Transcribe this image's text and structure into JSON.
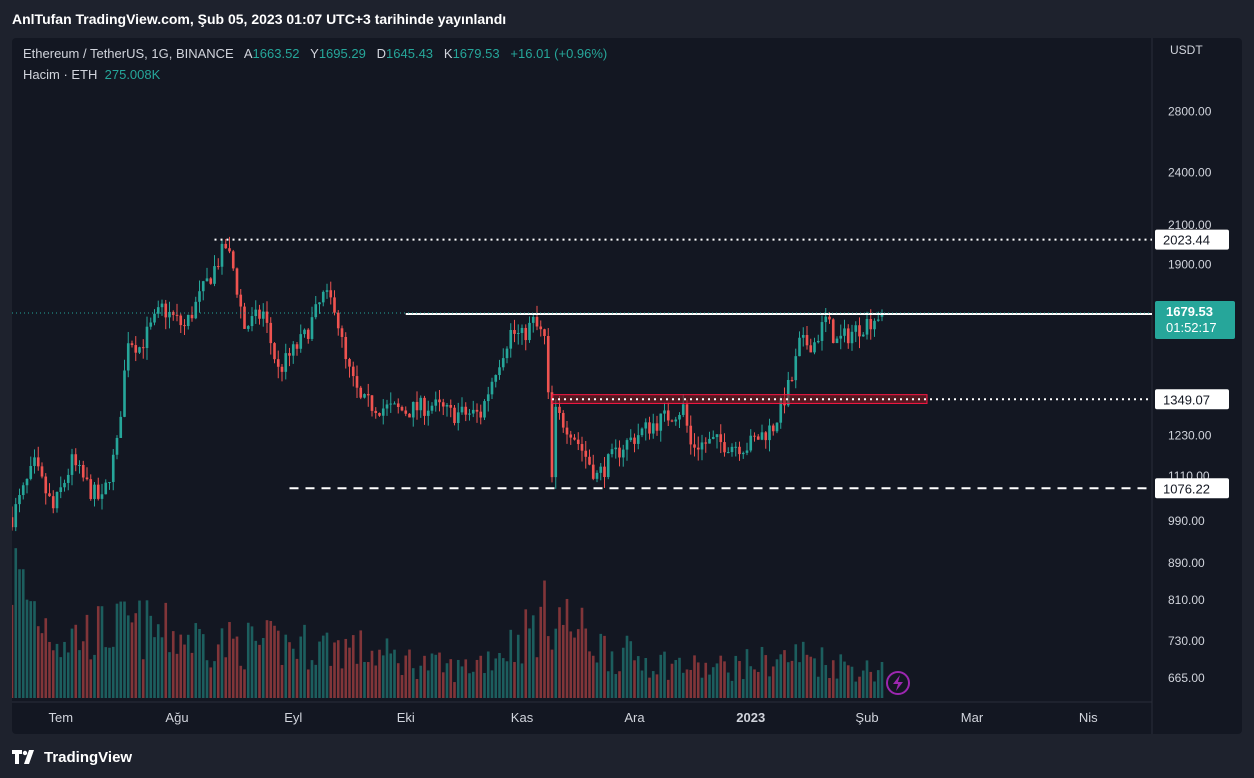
{
  "header": {
    "publish_line": "AnlTufan TradingView.com, Şub 05, 2023 01:07 UTC+3 tarihinde yayınlandı"
  },
  "legend": {
    "symbol": "Ethereum / TetherUS, 1G, BINANCE",
    "o_label": "A",
    "o_value": "1663.52",
    "h_label": "Y",
    "h_value": "1695.29",
    "l_label": "D",
    "l_value": "1645.43",
    "c_label": "K",
    "c_value": "1679.53",
    "change": "+16.01 (+0.96%)",
    "volume_label": "Hacim · ETH",
    "volume_value": "275.008K"
  },
  "footer": {
    "brand": "TradingView"
  },
  "colors": {
    "up": "#26a69a",
    "down": "#ef5350",
    "background": "#131722",
    "frame": "#1e222d",
    "zone": "#ff1744"
  },
  "chart_data": {
    "type": "candlestick",
    "currency": "USDT",
    "y_scale": "log",
    "ylim": [
      640,
      3050
    ],
    "y_ticks": [
      "2800.00",
      "2400.00",
      "2100.00",
      "1900.00",
      "1230.00",
      "1110.00",
      "990.00",
      "890.00",
      "810.00",
      "730.00",
      "665.00"
    ],
    "x_ticks": [
      {
        "label": "Tem",
        "date": "2022-07-01"
      },
      {
        "label": "Ağu",
        "date": "2022-08-01"
      },
      {
        "label": "Eyl",
        "date": "2022-09-01"
      },
      {
        "label": "Eki",
        "date": "2022-10-01"
      },
      {
        "label": "Kas",
        "date": "2022-11-01"
      },
      {
        "label": "Ara",
        "date": "2022-12-01"
      },
      {
        "label": "2023",
        "date": "2023-01-01"
      },
      {
        "label": "Şub",
        "date": "2023-02-01"
      },
      {
        "label": "Mar",
        "date": "2023-03-01"
      },
      {
        "label": "Nis",
        "date": "2023-04-01"
      }
    ],
    "start_date": "2022-06-18",
    "close_path": [
      {
        "date": "2022-06-18",
        "value": 1000
      },
      {
        "date": "2022-06-24",
        "value": 1140
      },
      {
        "date": "2022-06-29",
        "value": 1020
      },
      {
        "date": "2022-07-04",
        "value": 1150
      },
      {
        "date": "2022-07-09",
        "value": 1070
      },
      {
        "date": "2022-07-12",
        "value": 1040
      },
      {
        "date": "2022-07-16",
        "value": 1200
      },
      {
        "date": "2022-07-19",
        "value": 1580
      },
      {
        "date": "2022-07-22",
        "value": 1540
      },
      {
        "date": "2022-07-28",
        "value": 1700
      },
      {
        "date": "2022-08-03",
        "value": 1620
      },
      {
        "date": "2022-08-08",
        "value": 1780
      },
      {
        "date": "2022-08-14",
        "value": 1990
      },
      {
        "date": "2022-08-16",
        "value": 1880
      },
      {
        "date": "2022-08-19",
        "value": 1620
      },
      {
        "date": "2022-08-24",
        "value": 1680
      },
      {
        "date": "2022-08-28",
        "value": 1450
      },
      {
        "date": "2022-09-04",
        "value": 1580
      },
      {
        "date": "2022-09-09",
        "value": 1750
      },
      {
        "date": "2022-09-12",
        "value": 1720
      },
      {
        "date": "2022-09-15",
        "value": 1480
      },
      {
        "date": "2022-09-19",
        "value": 1340
      },
      {
        "date": "2022-09-25",
        "value": 1320
      },
      {
        "date": "2022-10-01",
        "value": 1310
      },
      {
        "date": "2022-10-08",
        "value": 1330
      },
      {
        "date": "2022-10-13",
        "value": 1300
      },
      {
        "date": "2022-10-21",
        "value": 1300
      },
      {
        "date": "2022-10-25",
        "value": 1460
      },
      {
        "date": "2022-10-29",
        "value": 1600
      },
      {
        "date": "2022-11-01",
        "value": 1580
      },
      {
        "date": "2022-11-04",
        "value": 1640
      },
      {
        "date": "2022-11-07",
        "value": 1570
      },
      {
        "date": "2022-11-08",
        "value": 1350
      },
      {
        "date": "2022-11-09",
        "value": 1100
      },
      {
        "date": "2022-11-10",
        "value": 1300
      },
      {
        "date": "2022-11-14",
        "value": 1250
      },
      {
        "date": "2022-11-21",
        "value": 1110
      },
      {
        "date": "2022-11-28",
        "value": 1200
      },
      {
        "date": "2022-12-05",
        "value": 1260
      },
      {
        "date": "2022-12-14",
        "value": 1320
      },
      {
        "date": "2022-12-16",
        "value": 1200
      },
      {
        "date": "2022-12-22",
        "value": 1210
      },
      {
        "date": "2022-12-31",
        "value": 1198
      },
      {
        "date": "2023-01-07",
        "value": 1260
      },
      {
        "date": "2023-01-12",
        "value": 1420
      },
      {
        "date": "2023-01-14",
        "value": 1550
      },
      {
        "date": "2023-01-18",
        "value": 1560
      },
      {
        "date": "2023-01-21",
        "value": 1650
      },
      {
        "date": "2023-01-24",
        "value": 1560
      },
      {
        "date": "2023-01-28",
        "value": 1600
      },
      {
        "date": "2023-02-01",
        "value": 1640
      },
      {
        "date": "2023-02-05",
        "value": 1679.53
      }
    ],
    "volume_path": [
      {
        "date": "2022-06-18",
        "value": 900
      },
      {
        "date": "2022-07-01",
        "value": 420
      },
      {
        "date": "2022-07-20",
        "value": 500
      },
      {
        "date": "2022-08-15",
        "value": 380
      },
      {
        "date": "2022-09-15",
        "value": 360
      },
      {
        "date": "2022-10-15",
        "value": 200
      },
      {
        "date": "2022-11-09",
        "value": 620
      },
      {
        "date": "2022-11-25",
        "value": 320
      },
      {
        "date": "2022-12-20",
        "value": 200
      },
      {
        "date": "2023-01-15",
        "value": 300
      },
      {
        "date": "2023-02-05",
        "value": 180
      }
    ],
    "last_price": "1679.53",
    "countdown": "01:52:17",
    "levels": [
      {
        "label": "2023.44",
        "value": 2023.44,
        "style": "dotted",
        "from": "2022-08-11"
      },
      {
        "label": "1675.47",
        "value": 1675.47,
        "style": "solid",
        "from": "2022-10-01"
      },
      {
        "label": "1349.07",
        "value": 1349.07,
        "style": "dotted",
        "from": "2022-11-09"
      },
      {
        "label": "1076.22",
        "value": 1076.22,
        "style": "dashed",
        "from": "2022-08-31"
      }
    ],
    "zone": {
      "from": "2022-11-09",
      "to": "2023-02-17",
      "top": 1365,
      "bottom": 1335
    }
  }
}
